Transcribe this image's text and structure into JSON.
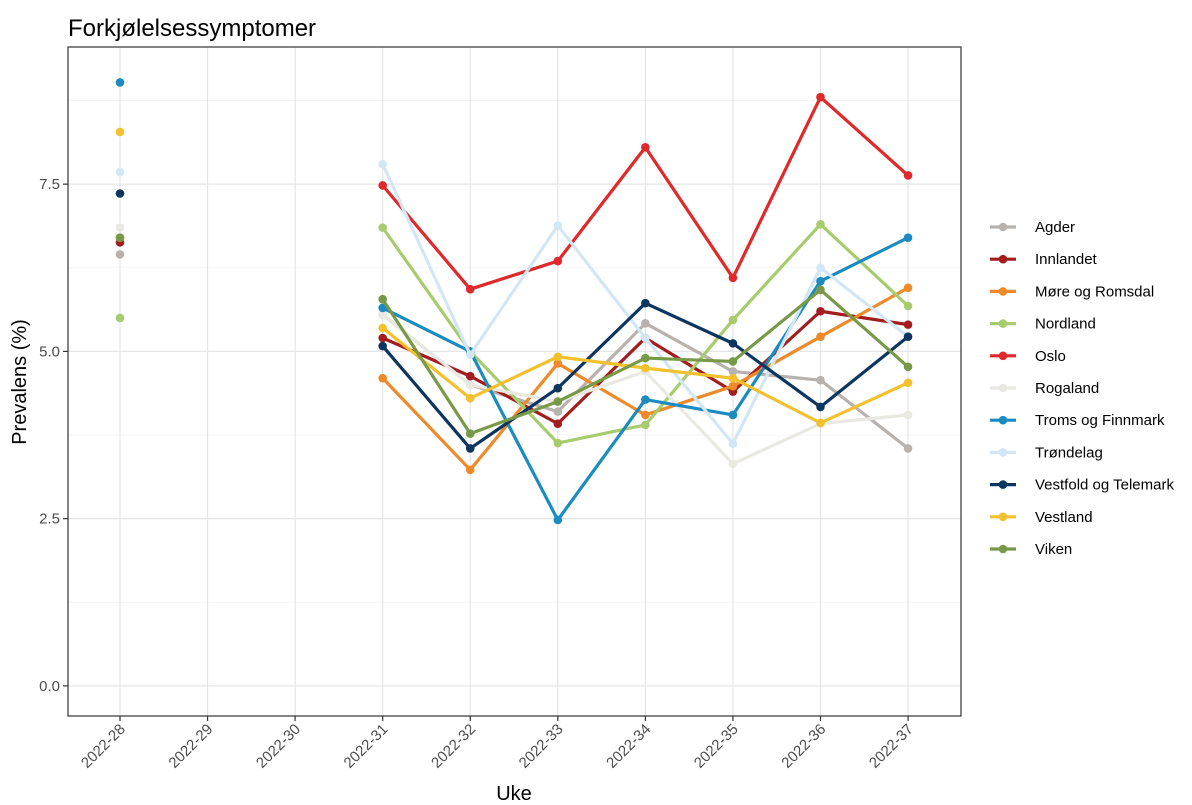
{
  "chart_data": {
    "type": "line",
    "title": "Forkjølelsessymptomer",
    "xlabel": "Uke",
    "ylabel": "Prevalens (%)",
    "categories": [
      "2022-28",
      "2022-29",
      "2022-30",
      "2022-31",
      "2022-32",
      "2022-33",
      "2022-34",
      "2022-35",
      "2022-36",
      "2022-37"
    ],
    "ylim": [
      -0.45,
      9.55
    ],
    "yticks": [
      0.0,
      2.5,
      5.0,
      7.5
    ],
    "ytick_labels": [
      "0.0",
      "2.5",
      "5.0",
      "7.5"
    ],
    "grid": true,
    "legend_position": "right",
    "series": [
      {
        "name": "Agder",
        "color": "#b8b2ae",
        "values": [
          6.45,
          null,
          null,
          5.55,
          4.5,
          4.1,
          5.42,
          4.7,
          4.57,
          3.55
        ]
      },
      {
        "name": "Innlandet",
        "color": "#a31c1e",
        "values": [
          6.63,
          null,
          null,
          5.2,
          4.63,
          3.92,
          5.2,
          4.4,
          5.6,
          5.4
        ]
      },
      {
        "name": "Møre og Romsdal",
        "color": "#ee8a2a",
        "values": [
          6.7,
          null,
          null,
          4.6,
          3.23,
          4.82,
          4.05,
          4.48,
          5.22,
          5.95
        ]
      },
      {
        "name": "Nordland",
        "color": "#a7cc6d",
        "values": [
          5.5,
          null,
          null,
          6.85,
          5.0,
          3.63,
          3.9,
          5.47,
          6.9,
          5.68
        ]
      },
      {
        "name": "Oslo",
        "color": "#e0292b",
        "values": [
          null,
          null,
          null,
          7.48,
          5.93,
          6.35,
          8.05,
          6.1,
          8.8,
          7.63
        ]
      },
      {
        "name": "Rogaland",
        "color": "#e9e9e2",
        "values": [
          6.85,
          null,
          null,
          5.55,
          4.5,
          4.25,
          4.7,
          3.32,
          3.92,
          4.05
        ]
      },
      {
        "name": "Troms og Finnmark",
        "color": "#1b8bc1",
        "values": [
          9.02,
          null,
          null,
          5.65,
          5.0,
          2.48,
          4.28,
          4.05,
          6.05,
          6.7
        ]
      },
      {
        "name": "Trøndelag",
        "color": "#d2e7f6",
        "values": [
          7.68,
          null,
          null,
          7.8,
          4.95,
          6.88,
          5.2,
          3.62,
          6.25,
          5.22
        ]
      },
      {
        "name": "Vestfold og Telemark",
        "color": "#0c365f",
        "values": [
          7.36,
          null,
          null,
          5.08,
          3.55,
          4.45,
          5.72,
          5.12,
          4.17,
          5.22
        ]
      },
      {
        "name": "Vestland",
        "color": "#f4c12e",
        "values": [
          8.28,
          null,
          null,
          5.35,
          4.3,
          4.92,
          4.75,
          4.6,
          3.93,
          4.53
        ]
      },
      {
        "name": "Viken",
        "color": "#789a48",
        "values": [
          6.7,
          null,
          null,
          5.78,
          3.77,
          4.25,
          4.9,
          4.85,
          5.92,
          4.77
        ]
      }
    ]
  }
}
